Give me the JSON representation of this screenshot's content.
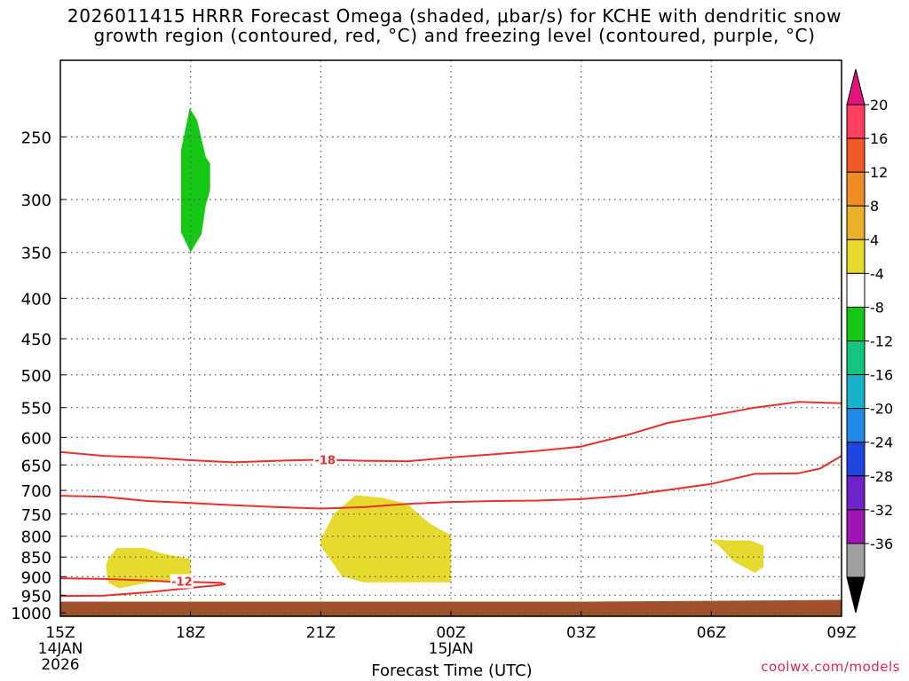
{
  "chart_data": {
    "type": "heatmap",
    "title_line1": "2026011415 HRRR Forecast Omega (shaded, μbar/s) for KCHE with dendritic snow",
    "title_line2": "growth region (contoured, red, °C) and freezing level (contoured, purple, °C)",
    "xlabel": "Forecast Time (UTC)",
    "ylabel": "",
    "credit": "coolwx.com/models",
    "x_ticks": [
      {
        "hour": 0,
        "label": "15Z",
        "sub1": "14JAN",
        "sub2": "2026"
      },
      {
        "hour": 3,
        "label": "18Z"
      },
      {
        "hour": 6,
        "label": "21Z"
      },
      {
        "hour": 9,
        "label": "00Z",
        "sub1": "15JAN"
      },
      {
        "hour": 12,
        "label": "03Z"
      },
      {
        "hour": 15,
        "label": "06Z"
      },
      {
        "hour": 18,
        "label": "09Z"
      }
    ],
    "y_ticks": [
      250,
      300,
      350,
      400,
      450,
      500,
      550,
      600,
      650,
      700,
      750,
      800,
      850,
      900,
      950,
      1000
    ],
    "x_range_hours": [
      0,
      18
    ],
    "y_range_hPa": [
      200,
      1010
    ],
    "y_scale": "log-pressure",
    "grid": true,
    "colorbar": {
      "labels": [
        "20",
        "16",
        "12",
        "8",
        "4",
        "-4",
        "-8",
        "-12",
        "-16",
        "-20",
        "-24",
        "-28",
        "-32",
        "-36"
      ],
      "colors": [
        "#ff3d5e",
        "#f05a28",
        "#f08c26",
        "#eab22a",
        "#e7da2e",
        "#ffffff",
        "#16c816",
        "#13c57e",
        "#16b4c8",
        "#1e8ce6",
        "#1e46dc",
        "#6e23c8",
        "#a014b4",
        "#a0a0a0"
      ],
      "top_arrow_color": "#e0147a",
      "bottom_arrow_color": "#000000"
    },
    "omega_regions": [
      {
        "color": "#16c816",
        "value_range": "-8 to -4",
        "polygon": [
          [
            2.98,
            230
          ],
          [
            3.15,
            238
          ],
          [
            3.35,
            265
          ],
          [
            3.45,
            270
          ],
          [
            3.45,
            292
          ],
          [
            3.35,
            305
          ],
          [
            3.25,
            332
          ],
          [
            3.0,
            350
          ],
          [
            2.78,
            330
          ],
          [
            2.78,
            260
          ]
        ]
      },
      {
        "color": "#e7da2e",
        "value_range": "4 to 8",
        "polygon": [
          [
            1.05,
            870
          ],
          [
            1.1,
            855
          ],
          [
            1.3,
            828
          ],
          [
            1.95,
            828
          ],
          [
            2.3,
            840
          ],
          [
            3.0,
            855
          ],
          [
            3.0,
            906
          ],
          [
            2.0,
            916
          ],
          [
            1.35,
            931
          ],
          [
            1.1,
            916
          ]
        ]
      },
      {
        "color": "#e7da2e",
        "value_range": "4 to 8",
        "polygon": [
          [
            6.0,
            823
          ],
          [
            6.0,
            808
          ],
          [
            6.3,
            750
          ],
          [
            6.8,
            710
          ],
          [
            7.4,
            715
          ],
          [
            8.0,
            728
          ],
          [
            8.2,
            745
          ],
          [
            8.5,
            770
          ],
          [
            9.0,
            798
          ],
          [
            9.0,
            915
          ],
          [
            7.0,
            915
          ],
          [
            6.5,
            900
          ]
        ]
      },
      {
        "color": "#e7da2e",
        "value_range": "4 to 8",
        "polygon": [
          [
            15.0,
            810
          ],
          [
            15.1,
            808
          ],
          [
            15.4,
            810
          ],
          [
            15.9,
            810
          ],
          [
            16.2,
            822
          ],
          [
            16.2,
            875
          ],
          [
            16.0,
            890
          ],
          [
            15.5,
            860
          ],
          [
            15.2,
            825
          ]
        ]
      }
    ],
    "ground": {
      "color": "#a0522d",
      "pressure_top_hPa": [
        {
          "hour": 0,
          "p": 968
        },
        {
          "hour": 12,
          "p": 968
        },
        {
          "hour": 18,
          "p": 963
        }
      ]
    },
    "dgz_contours": [
      {
        "label": "-18",
        "label_at": {
          "hour": 6.1,
          "p": 640
        },
        "points": [
          [
            0,
            626
          ],
          [
            1,
            633
          ],
          [
            2,
            636
          ],
          [
            3,
            641
          ],
          [
            4,
            645
          ],
          [
            5,
            642
          ],
          [
            6,
            640
          ],
          [
            7,
            642
          ],
          [
            8,
            643
          ],
          [
            9,
            636
          ],
          [
            10,
            630
          ],
          [
            11,
            624
          ],
          [
            12,
            616
          ],
          [
            13,
            597
          ],
          [
            14,
            575
          ],
          [
            15,
            563
          ],
          [
            16,
            550
          ],
          [
            17,
            541
          ],
          [
            18,
            543
          ]
        ]
      },
      {
        "label": "",
        "points": [
          [
            0,
            711
          ],
          [
            1,
            713
          ],
          [
            2,
            722
          ],
          [
            3,
            726
          ],
          [
            4,
            731
          ],
          [
            5,
            735
          ],
          [
            6,
            738
          ],
          [
            7,
            735
          ],
          [
            8,
            728
          ],
          [
            9,
            724
          ],
          [
            10,
            722
          ],
          [
            11,
            721
          ],
          [
            12,
            718
          ],
          [
            13,
            711
          ],
          [
            14,
            699
          ],
          [
            15,
            687
          ],
          [
            16,
            667
          ],
          [
            17,
            666
          ],
          [
            17.5,
            657
          ],
          [
            18,
            633
          ]
        ]
      },
      {
        "label": "-12",
        "label_at": {
          "hour": 2.8,
          "p": 912
        },
        "points": [
          [
            0,
            904
          ],
          [
            1,
            906
          ],
          [
            2,
            910
          ],
          [
            2.5,
            913
          ],
          [
            3,
            914
          ],
          [
            3.7,
            916
          ],
          [
            3.8,
            920
          ],
          [
            3.6,
            923
          ],
          [
            3.0,
            930
          ],
          [
            2.5,
            936
          ],
          [
            2.0,
            942
          ],
          [
            1.0,
            951
          ],
          [
            0,
            952
          ]
        ]
      }
    ]
  }
}
